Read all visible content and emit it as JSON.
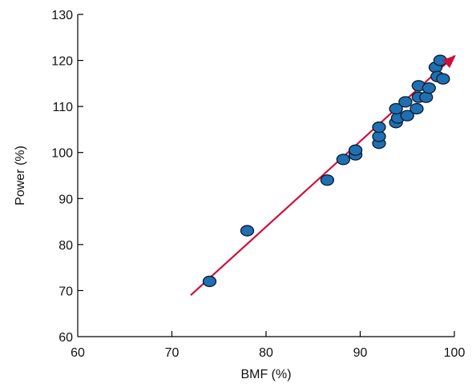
{
  "chart_data": {
    "type": "scatter",
    "title": "",
    "xlabel": "BMF (%)",
    "ylabel": "Power (%)",
    "xlim": [
      60,
      100
    ],
    "ylim": [
      60,
      130
    ],
    "xticks": [
      60,
      70,
      80,
      90,
      100
    ],
    "yticks": [
      60,
      70,
      80,
      90,
      100,
      110,
      120,
      130
    ],
    "grid": false,
    "legend": "none",
    "colors": {
      "point_fill": "#1f6fb2",
      "point_stroke": "#0a1a2a",
      "fit_line": "#d0103a",
      "axis": "#000000"
    },
    "series": [
      {
        "name": "",
        "points": [
          {
            "x": 74.0,
            "y": 72.0
          },
          {
            "x": 78.0,
            "y": 83.0
          },
          {
            "x": 86.5,
            "y": 94.0
          },
          {
            "x": 88.2,
            "y": 98.5
          },
          {
            "x": 89.5,
            "y": 99.5
          },
          {
            "x": 89.5,
            "y": 100.5
          },
          {
            "x": 92.0,
            "y": 102.0
          },
          {
            "x": 92.0,
            "y": 103.5
          },
          {
            "x": 92.0,
            "y": 105.5
          },
          {
            "x": 93.8,
            "y": 106.5
          },
          {
            "x": 94.0,
            "y": 107.5
          },
          {
            "x": 93.8,
            "y": 109.5
          },
          {
            "x": 95.0,
            "y": 108.0
          },
          {
            "x": 94.8,
            "y": 111.0
          },
          {
            "x": 96.0,
            "y": 109.5
          },
          {
            "x": 96.2,
            "y": 112.0
          },
          {
            "x": 96.2,
            "y": 114.5
          },
          {
            "x": 97.0,
            "y": 112.0
          },
          {
            "x": 97.3,
            "y": 114.0
          },
          {
            "x": 98.0,
            "y": 118.5
          },
          {
            "x": 98.2,
            "y": 116.5
          },
          {
            "x": 98.5,
            "y": 120.0
          },
          {
            "x": 98.8,
            "y": 116.0
          }
        ]
      }
    ],
    "fit_line": {
      "x": [
        72,
        100
      ],
      "y": [
        69,
        121
      ]
    }
  }
}
